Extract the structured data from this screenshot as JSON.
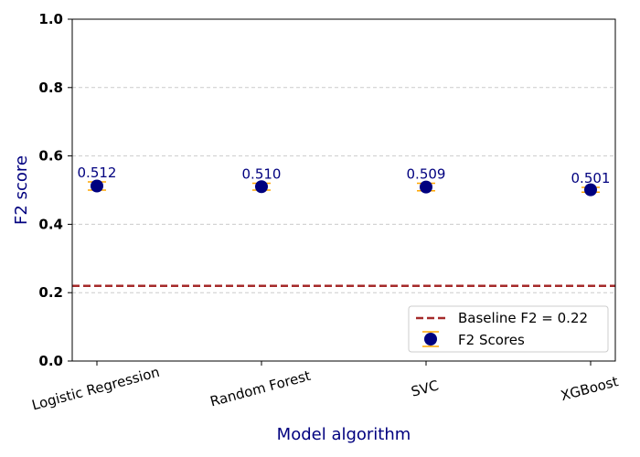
{
  "chart_data": {
    "type": "scatter",
    "categories": [
      "Logistic Regression",
      "Random Forest",
      "SVC",
      "XGBoost"
    ],
    "values": [
      0.512,
      0.51,
      0.509,
      0.501
    ],
    "value_labels": [
      "0.512",
      "0.510",
      "0.509",
      "0.501"
    ],
    "error": [
      0.012,
      0.01,
      0.011,
      0.007
    ],
    "xlabel": "Model algorithm",
    "ylabel": "F2 score",
    "ylim": [
      0.0,
      1.0
    ],
    "yticks": [
      "0.0",
      "0.2",
      "0.4",
      "0.6",
      "0.8",
      "1.0"
    ],
    "grid": "y-dashed",
    "baseline": {
      "value": 0.22,
      "label": "Baseline F2 = 0.22"
    },
    "legend": {
      "placement": "bottom-right",
      "entries": [
        "Baseline F2 = 0.22",
        "F2 Scores"
      ]
    },
    "colors": {
      "marker": "#00007f",
      "errorbar": "#ffa500",
      "baseline": "#a52a2a",
      "label": "#00007f",
      "grid": "#cccccc"
    }
  }
}
